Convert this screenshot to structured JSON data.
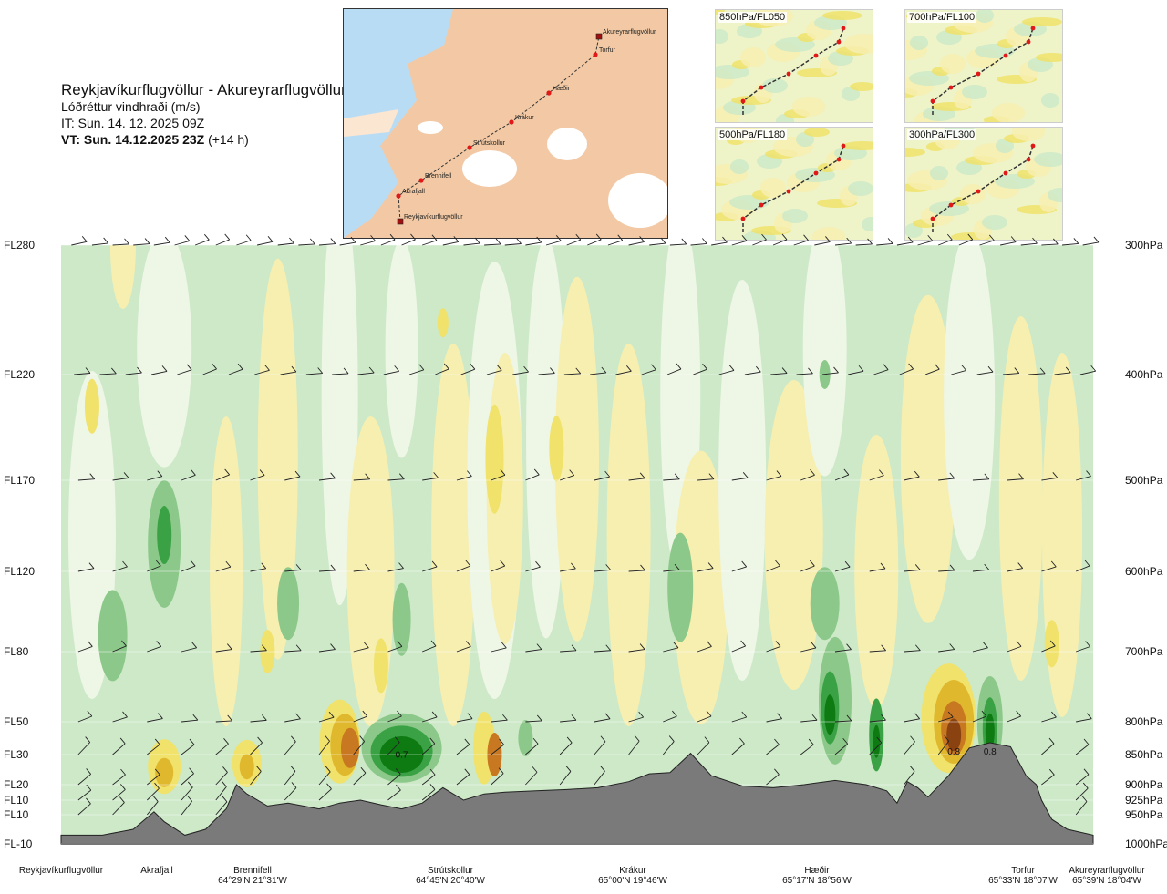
{
  "header": {
    "route": "Reykjavíkurflugvöllur - Akureyrarflugvöllur",
    "variable": "Lóðréttur vindhraði (m/s)",
    "issue_time": "IT: Sun. 14. 12. 2025 09Z",
    "valid_time": "VT: Sun. 14.12.2025 23Z",
    "lead": "(+14 h)"
  },
  "route_map": {
    "points": [
      {
        "label": "Reykjavíkurflugvöllur"
      },
      {
        "label": "Akrafjall"
      },
      {
        "label": "Brennifell"
      },
      {
        "label": "Strútskollur"
      },
      {
        "label": "Krákur"
      },
      {
        "label": "Hæðir"
      },
      {
        "label": "Torfur"
      },
      {
        "label": "Akureyrarflugvöllur"
      }
    ],
    "colors": {
      "land": "#f2c9a4",
      "sea": "#b9dcf5",
      "ice": "#ffffff",
      "route": "#333333",
      "point": "#e01818"
    }
  },
  "mini_maps": [
    {
      "label": "850hPa/FL050"
    },
    {
      "label": "700hPa/FL100"
    },
    {
      "label": "500hPa/FL180"
    },
    {
      "label": "300hPa/FL300"
    }
  ],
  "chart_data": {
    "type": "heatmap",
    "title": "Lóðréttur vindhraði (m/s)",
    "x_stations": [
      {
        "name": "Reykjavíkurflugvöllur",
        "coord": "",
        "distance": 0.0
      },
      {
        "name": "Akrafjall",
        "coord": "",
        "distance": 0.09
      },
      {
        "name": "Brennifell",
        "coord": "64°29'N 21°31'W",
        "distance": 0.18
      },
      {
        "name": "Strútskollur",
        "coord": "64°45'N 20°40'W",
        "distance": 0.38
      },
      {
        "name": "Krákur",
        "coord": "65°00'N 19°46'W",
        "distance": 0.57
      },
      {
        "name": "Hæðir",
        "coord": "65°17'N 18°56'W",
        "distance": 0.77
      },
      {
        "name": "Torfur",
        "coord": "65°33'N 18°07'W",
        "distance": 0.94
      },
      {
        "name": "Akureyrarflugvöllur",
        "coord": "65°39'N 18°04'W",
        "distance": 1.0
      }
    ],
    "levels_left": [
      "FL280",
      "FL220",
      "FL170",
      "FL120",
      "FL80",
      "FL50",
      "FL30",
      "FL20",
      "FL10",
      "FL10",
      "FL-10"
    ],
    "levels_right": [
      "300hPa",
      "400hPa",
      "500hPa",
      "600hPa",
      "700hPa",
      "800hPa",
      "850hPa",
      "900hPa",
      "925hPa",
      "950hPa",
      "1000hPa"
    ],
    "pressure_levels_hpa": [
      300,
      400,
      500,
      600,
      700,
      800,
      850,
      900,
      925,
      950,
      1000
    ],
    "annotations": [
      {
        "text": "0.7",
        "distance": 0.33,
        "hpa": 855
      },
      {
        "text": "0.8",
        "distance": 0.865,
        "hpa": 850
      },
      {
        "text": "0.8",
        "distance": 0.9,
        "hpa": 850
      }
    ],
    "color_scale": {
      "down_strong": "#0d7a12",
      "down_mid": "#3aa244",
      "down_weak": "#8cc88a",
      "down_faint": "#cde9c8",
      "neutral": "#eef6e6",
      "up_faint": "#f7efb0",
      "up_weak": "#f0e26a",
      "up_mid": "#e0b82e",
      "up_strong": "#c87820",
      "up_extreme": "#8a4210",
      "terrain": "#7a7a7a"
    },
    "terrain_profile_hpa": [
      [
        0.0,
        985
      ],
      [
        0.04,
        985
      ],
      [
        0.07,
        975
      ],
      [
        0.09,
        945
      ],
      [
        0.1,
        962
      ],
      [
        0.12,
        985
      ],
      [
        0.14,
        975
      ],
      [
        0.16,
        940
      ],
      [
        0.17,
        900
      ],
      [
        0.18,
        915
      ],
      [
        0.2,
        935
      ],
      [
        0.22,
        930
      ],
      [
        0.25,
        940
      ],
      [
        0.27,
        930
      ],
      [
        0.29,
        925
      ],
      [
        0.31,
        933
      ],
      [
        0.33,
        940
      ],
      [
        0.35,
        930
      ],
      [
        0.37,
        905
      ],
      [
        0.39,
        925
      ],
      [
        0.41,
        915
      ],
      [
        0.43,
        912
      ],
      [
        0.46,
        910
      ],
      [
        0.49,
        908
      ],
      [
        0.52,
        905
      ],
      [
        0.55,
        895
      ],
      [
        0.57,
        882
      ],
      [
        0.59,
        880
      ],
      [
        0.61,
        848
      ],
      [
        0.63,
        885
      ],
      [
        0.66,
        902
      ],
      [
        0.69,
        905
      ],
      [
        0.72,
        900
      ],
      [
        0.75,
        893
      ],
      [
        0.78,
        900
      ],
      [
        0.8,
        910
      ],
      [
        0.81,
        930
      ],
      [
        0.82,
        895
      ],
      [
        0.83,
        905
      ],
      [
        0.84,
        920
      ],
      [
        0.86,
        885
      ],
      [
        0.88,
        840
      ],
      [
        0.9,
        832
      ],
      [
        0.92,
        838
      ],
      [
        0.935,
        885
      ],
      [
        0.945,
        900
      ],
      [
        0.95,
        925
      ],
      [
        0.96,
        958
      ],
      [
        0.975,
        975
      ],
      [
        1.0,
        985
      ]
    ],
    "wind_barb_levels_hpa": [
      300,
      400,
      500,
      600,
      700,
      800,
      850,
      900,
      925,
      950
    ],
    "xlabel": "",
    "ylabel": ""
  }
}
